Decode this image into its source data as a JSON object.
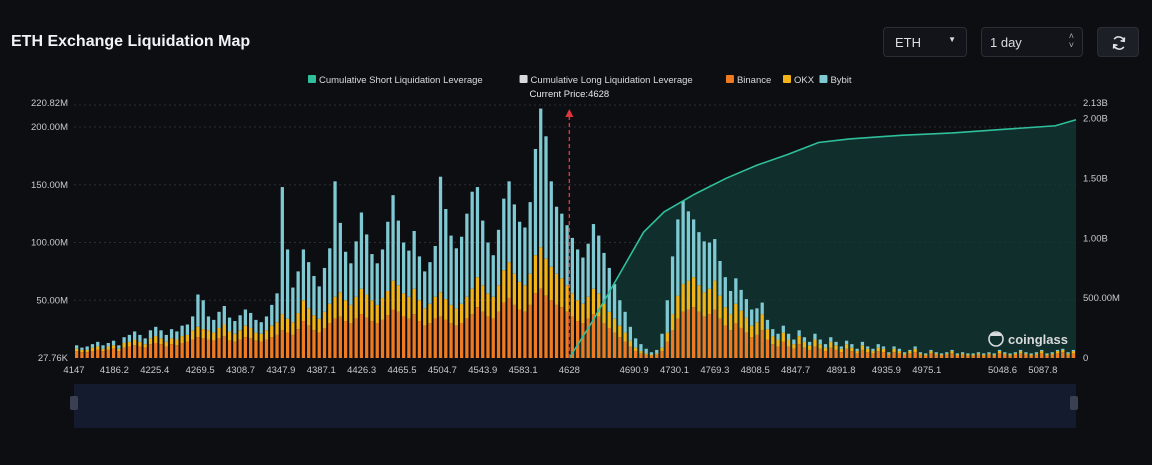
{
  "header": {
    "title": "ETH Exchange Liquidation Map",
    "symbol_select": "ETH",
    "range_select": "1 day"
  },
  "watermark": "coinglass",
  "chart_data": {
    "type": "bar",
    "title": "ETH Exchange Liquidation Map",
    "current_price_label": "Current Price:4628",
    "current_price": 4628,
    "x_tick_labels": [
      "4147",
      "4186.2",
      "4225.4",
      "4269.5",
      "4308.7",
      "4347.9",
      "4387.1",
      "4426.3",
      "4465.5",
      "4504.7",
      "4543.9",
      "4583.1",
      "4628",
      "4690.9",
      "4730.1",
      "4769.3",
      "4808.5",
      "4847.7",
      "4891.8",
      "4935.9",
      "4975.1",
      "5048.6",
      "5087.8"
    ],
    "left_axis": {
      "tick_labels": [
        "220.82M",
        "200.00M",
        "150.00M",
        "100.00M",
        "50.00M",
        "27.76K"
      ],
      "range": [
        0,
        220820000
      ]
    },
    "right_axis": {
      "tick_labels": [
        "2.13B",
        "2.00B",
        "1.50B",
        "1.00B",
        "500.00M",
        "0"
      ],
      "range": [
        0,
        2130000000
      ]
    },
    "legend": [
      {
        "name": "Cumulative Short Liquidation Leverage",
        "color": "#2fbf9b"
      },
      {
        "name": "Cumulative Long Liquidation Leverage",
        "color": "#d7d9de"
      },
      {
        "name": "Binance",
        "color": "#ee7b22"
      },
      {
        "name": "OKX",
        "color": "#f2b316"
      },
      {
        "name": "Bybit",
        "color": "#7fc9d3"
      }
    ],
    "legend_position": "top-center",
    "grid": true,
    "cumulative_short": {
      "price": [
        4628,
        4650,
        4680,
        4700,
        4720,
        4750,
        4780,
        4810,
        4840,
        4870,
        4900,
        4950,
        5000,
        5050,
        5100,
        5120
      ],
      "value": [
        0,
        300000000,
        750000000,
        1050000000,
        1220000000,
        1370000000,
        1500000000,
        1610000000,
        1700000000,
        1800000000,
        1830000000,
        1860000000,
        1880000000,
        1910000000,
        1940000000,
        1990000000
      ]
    },
    "bars": {
      "price_start": 4147,
      "price_end": 5120,
      "binance": [
        6,
        5,
        5,
        6,
        7,
        6,
        7,
        8,
        6,
        9,
        10,
        11,
        10,
        9,
        12,
        13,
        12,
        10,
        12,
        11,
        13,
        14,
        16,
        18,
        17,
        16,
        15,
        17,
        19,
        15,
        14,
        16,
        18,
        17,
        15,
        14,
        16,
        18,
        20,
        24,
        22,
        20,
        25,
        32,
        28,
        24,
        22,
        26,
        30,
        34,
        36,
        32,
        30,
        34,
        38,
        35,
        32,
        30,
        33,
        37,
        42,
        40,
        36,
        34,
        38,
        32,
        28,
        30,
        34,
        36,
        33,
        30,
        28,
        30,
        34,
        38,
        44,
        40,
        36,
        34,
        40,
        48,
        52,
        46,
        42,
        40,
        46,
        56,
        60,
        54,
        50,
        46,
        44,
        40,
        36,
        32,
        30,
        34,
        38,
        36,
        30,
        26,
        22,
        18,
        14,
        10,
        6,
        4,
        3,
        2,
        3,
        6,
        14,
        24,
        34,
        40,
        42,
        44,
        40,
        36,
        38,
        42,
        34,
        28,
        24,
        30,
        26,
        22,
        18,
        20,
        24,
        16,
        12,
        10,
        14,
        10,
        8,
        12,
        9,
        7,
        10,
        8,
        6,
        9,
        7,
        5,
        8,
        6,
        4,
        7,
        5,
        4,
        6,
        5,
        3,
        5,
        4,
        3,
        4,
        5,
        3,
        2,
        4,
        3,
        2,
        3,
        4,
        2,
        3,
        2,
        2,
        3,
        2,
        3,
        2,
        4,
        3,
        2,
        3,
        4,
        3,
        2,
        3,
        4,
        2,
        3,
        4,
        5,
        3,
        4
      ],
      "okx": [
        2,
        2,
        2,
        3,
        3,
        2,
        3,
        3,
        2,
        4,
        4,
        5,
        4,
        3,
        5,
        6,
        5,
        4,
        5,
        5,
        6,
        6,
        8,
        9,
        8,
        8,
        7,
        9,
        10,
        8,
        7,
        8,
        10,
        9,
        7,
        7,
        8,
        10,
        11,
        14,
        12,
        11,
        14,
        18,
        15,
        13,
        12,
        14,
        17,
        19,
        21,
        18,
        16,
        19,
        22,
        20,
        18,
        16,
        19,
        21,
        25,
        23,
        20,
        19,
        22,
        18,
        15,
        17,
        19,
        21,
        18,
        16,
        15,
        17,
        19,
        22,
        26,
        23,
        20,
        19,
        23,
        28,
        31,
        27,
        24,
        23,
        27,
        33,
        36,
        32,
        29,
        27,
        25,
        23,
        20,
        18,
        17,
        19,
        22,
        20,
        17,
        14,
        12,
        10,
        8,
        5,
        3,
        2,
        1,
        1,
        1,
        3,
        8,
        14,
        20,
        24,
        25,
        26,
        23,
        21,
        22,
        25,
        20,
        16,
        14,
        17,
        15,
        13,
        10,
        11,
        14,
        9,
        7,
        6,
        8,
        6,
        4,
        7,
        5,
        4,
        6,
        4,
        3,
        5,
        4,
        3,
        4,
        3,
        2,
        4,
        3,
        2,
        3,
        3,
        1,
        3,
        2,
        1,
        2,
        3,
        1,
        1,
        2,
        1,
        1,
        1,
        2,
        1,
        1,
        1,
        1,
        1,
        1,
        1,
        1,
        2,
        1,
        1,
        1,
        2,
        1,
        1,
        1,
        2,
        1,
        1,
        2,
        2,
        1,
        2
      ],
      "bybit": [
        3,
        2,
        3,
        3,
        4,
        3,
        3,
        4,
        3,
        5,
        6,
        7,
        6,
        5,
        7,
        8,
        7,
        6,
        8,
        7,
        9,
        9,
        12,
        28,
        25,
        12,
        11,
        14,
        16,
        12,
        11,
        13,
        14,
        13,
        11,
        10,
        12,
        18,
        25,
        110,
        60,
        30,
        36,
        44,
        40,
        34,
        28,
        38,
        48,
        100,
        60,
        42,
        36,
        48,
        66,
        52,
        40,
        36,
        42,
        60,
        74,
        56,
        44,
        40,
        50,
        38,
        32,
        36,
        44,
        100,
        78,
        60,
        52,
        58,
        72,
        84,
        78,
        56,
        44,
        36,
        48,
        62,
        70,
        60,
        52,
        50,
        62,
        92,
        120,
        106,
        74,
        58,
        56,
        52,
        48,
        44,
        40,
        46,
        56,
        50,
        44,
        38,
        30,
        22,
        18,
        12,
        8,
        6,
        4,
        2,
        3,
        12,
        28,
        50,
        66,
        72,
        60,
        50,
        46,
        44,
        40,
        36,
        30,
        26,
        20,
        22,
        18,
        16,
        14,
        12,
        10,
        8,
        6,
        5,
        6,
        5,
        4,
        5,
        4,
        3,
        5,
        4,
        3,
        4,
        3,
        2,
        3,
        3,
        2,
        3,
        2,
        2,
        3,
        2,
        1,
        2,
        2,
        1,
        1,
        2,
        1,
        1,
        1,
        1,
        1,
        1,
        1,
        1,
        1,
        1,
        1,
        1,
        1,
        1,
        1,
        1,
        1,
        1,
        1,
        1,
        1,
        1,
        1,
        1,
        1,
        1,
        1,
        1,
        1,
        1
      ],
      "units": "millions"
    }
  }
}
